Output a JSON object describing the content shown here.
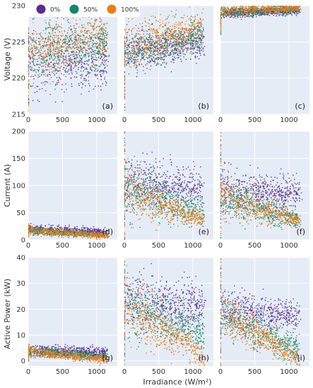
{
  "legend": [
    {
      "label": "0%",
      "color": "#5b2c91"
    },
    {
      "label": "50%",
      "color": "#10876a"
    },
    {
      "label": "100%",
      "color": "#ec7d14"
    }
  ],
  "colors": {
    "plot_background": "#e5ecf6",
    "grid": "#ffffff"
  },
  "chart_data": [
    {
      "type": "scatter",
      "panel": "(a)",
      "quantity": "voltage",
      "ylabel": "Voltage (V)",
      "ylim": [
        215,
        230
      ],
      "yticks": [
        215,
        220,
        225,
        230
      ],
      "xlim": [
        0,
        1300
      ],
      "xticks": [
        0,
        500,
        1000
      ],
      "series": [
        {
          "name": "0%",
          "x_range": [
            0,
            1150
          ],
          "y_start": [
            218,
            227
          ],
          "y_end": [
            219,
            226
          ],
          "at_x0": [
            216,
            227
          ]
        },
        {
          "name": "50%",
          "x_range": [
            0,
            1150
          ],
          "y_start": [
            219,
            227
          ],
          "y_end": [
            222,
            228
          ],
          "at_x0": [
            216,
            227
          ]
        },
        {
          "name": "100%",
          "x_range": [
            0,
            1150
          ],
          "y_start": [
            220,
            227
          ],
          "y_end": [
            223,
            229
          ],
          "at_x0": [
            215.5,
            227
          ]
        }
      ]
    },
    {
      "type": "scatter",
      "panel": "(b)",
      "quantity": "voltage",
      "ylim": [
        215,
        230
      ],
      "xlim": [
        0,
        1300
      ],
      "xticks": [
        0,
        500,
        1000
      ],
      "series": [
        {
          "name": "0%",
          "x_range": [
            0,
            1150
          ],
          "y_start": [
            221,
            226
          ],
          "y_end": [
            223,
            227
          ],
          "at_x0": [
            215.5,
            226
          ]
        },
        {
          "name": "50%",
          "x_range": [
            0,
            1150
          ],
          "y_start": [
            221,
            226
          ],
          "y_end": [
            224,
            228
          ],
          "at_x0": [
            215.5,
            226
          ]
        },
        {
          "name": "100%",
          "x_range": [
            0,
            1150
          ],
          "y_start": [
            221,
            227
          ],
          "y_end": [
            225,
            229
          ],
          "at_x0": [
            215.5,
            227
          ]
        }
      ]
    },
    {
      "type": "scatter",
      "panel": "(c)",
      "quantity": "voltage",
      "ylim": [
        215,
        230
      ],
      "xlim": [
        0,
        1300
      ],
      "xticks": [
        0,
        500,
        1000
      ],
      "series": [
        {
          "name": "0%",
          "x_range": [
            0,
            1150
          ],
          "y_start": [
            228.3,
            229.6
          ],
          "y_end": [
            228.8,
            229.8
          ],
          "at_x0": [
            226,
            229
          ]
        },
        {
          "name": "50%",
          "x_range": [
            0,
            1150
          ],
          "y_start": [
            228.3,
            229.8
          ],
          "y_end": [
            229,
            230
          ],
          "at_x0": [
            226,
            229
          ]
        },
        {
          "name": "100%",
          "x_range": [
            0,
            1150
          ],
          "y_start": [
            228.5,
            230
          ],
          "y_end": [
            229.2,
            230.2
          ],
          "at_x0": [
            226,
            229.5
          ]
        }
      ]
    },
    {
      "type": "scatter",
      "panel": "(d)",
      "quantity": "current",
      "ylabel": "Current (A)",
      "ylim": [
        0,
        200
      ],
      "yticks": [
        0,
        50,
        100,
        150,
        200
      ],
      "xlim": [
        0,
        1300
      ],
      "xticks": [
        0,
        500,
        1000
      ],
      "series": [
        {
          "name": "0%",
          "x_range": [
            0,
            1150
          ],
          "y_start": [
            12,
            28
          ],
          "y_end": [
            8,
            20
          ],
          "at_x0": [
            5,
            30
          ]
        },
        {
          "name": "50%",
          "x_range": [
            0,
            1150
          ],
          "y_start": [
            10,
            25
          ],
          "y_end": [
            5,
            12
          ],
          "at_x0": [
            5,
            30
          ]
        },
        {
          "name": "100%",
          "x_range": [
            0,
            1150
          ],
          "y_start": [
            10,
            25
          ],
          "y_end": [
            3,
            12
          ],
          "at_x0": [
            5,
            30
          ]
        }
      ]
    },
    {
      "type": "scatter",
      "panel": "(e)",
      "quantity": "current",
      "ylim": [
        0,
        200
      ],
      "xlim": [
        0,
        1300
      ],
      "xticks": [
        0,
        500,
        1000
      ],
      "series": [
        {
          "name": "0%",
          "x_range": [
            0,
            1150
          ],
          "y_start": [
            55,
            150
          ],
          "y_end": [
            70,
            125
          ],
          "at_x0": [
            0,
            200
          ]
        },
        {
          "name": "50%",
          "x_range": [
            0,
            1150
          ],
          "y_start": [
            50,
            140
          ],
          "y_end": [
            25,
            75
          ],
          "at_x0": [
            0,
            200
          ]
        },
        {
          "name": "100%",
          "x_range": [
            0,
            1150
          ],
          "y_start": [
            50,
            140
          ],
          "y_end": [
            25,
            45
          ],
          "at_x0": [
            0,
            200
          ]
        }
      ]
    },
    {
      "type": "scatter",
      "panel": "(f)",
      "quantity": "current",
      "ylim": [
        0,
        200
      ],
      "xlim": [
        0,
        1300
      ],
      "xticks": [
        0,
        500,
        1000
      ],
      "series": [
        {
          "name": "0%",
          "x_range": [
            0,
            1150
          ],
          "y_start": [
            50,
            130
          ],
          "y_end": [
            65,
            110
          ],
          "at_x0": [
            0,
            200
          ]
        },
        {
          "name": "50%",
          "x_range": [
            0,
            1150
          ],
          "y_start": [
            45,
            115
          ],
          "y_end": [
            20,
            50
          ],
          "at_x0": [
            0,
            200
          ]
        },
        {
          "name": "100%",
          "x_range": [
            0,
            1150
          ],
          "y_start": [
            45,
            115
          ],
          "y_end": [
            25,
            45
          ],
          "at_x0": [
            0,
            200
          ]
        }
      ]
    },
    {
      "type": "scatter",
      "panel": "(g)",
      "quantity": "active power",
      "ylabel": "Active Power (kW)",
      "ylim": [
        -2,
        40
      ],
      "yticks": [
        0,
        10,
        20,
        30,
        40
      ],
      "xlim": [
        0,
        1300
      ],
      "xticks": [
        0,
        500,
        1000
      ],
      "series": [
        {
          "name": "0%",
          "x_range": [
            0,
            1150
          ],
          "y_start": [
            2,
            6
          ],
          "y_end": [
            1.5,
            5
          ],
          "at_x0": [
            0,
            6
          ]
        },
        {
          "name": "50%",
          "x_range": [
            0,
            1150
          ],
          "y_start": [
            2,
            5.5
          ],
          "y_end": [
            0,
            3
          ],
          "at_x0": [
            0,
            6
          ]
        },
        {
          "name": "100%",
          "x_range": [
            0,
            1150
          ],
          "y_start": [
            2,
            5.5
          ],
          "y_end": [
            -1,
            2
          ],
          "at_x0": [
            0,
            6
          ]
        }
      ]
    },
    {
      "type": "scatter",
      "panel": "(h)",
      "quantity": "active power",
      "ylim": [
        -2,
        40
      ],
      "xlim": [
        0,
        1300
      ],
      "xticks": [
        0,
        500,
        1000
      ],
      "series": [
        {
          "name": "0%",
          "x_range": [
            0,
            1150
          ],
          "y_start": [
            12,
            35
          ],
          "y_end": [
            14,
            28
          ],
          "at_x0": [
            -2,
            40
          ]
        },
        {
          "name": "50%",
          "x_range": [
            0,
            1150
          ],
          "y_start": [
            11,
            32
          ],
          "y_end": [
            5,
            17
          ],
          "at_x0": [
            -2,
            40
          ]
        },
        {
          "name": "100%",
          "x_range": [
            0,
            1150
          ],
          "y_start": [
            11,
            32
          ],
          "y_end": [
            -2,
            7
          ],
          "at_x0": [
            -2,
            40
          ]
        }
      ]
    },
    {
      "type": "scatter",
      "panel": "(i)",
      "quantity": "active power",
      "ylim": [
        -2,
        40
      ],
      "xlim": [
        0,
        1300
      ],
      "xticks": [
        0,
        500,
        1000
      ],
      "series": [
        {
          "name": "0%",
          "x_range": [
            0,
            1150
          ],
          "y_start": [
            12,
            28
          ],
          "y_end": [
            13,
            22
          ],
          "at_x0": [
            -2,
            40
          ]
        },
        {
          "name": "50%",
          "x_range": [
            0,
            1150
          ],
          "y_start": [
            11,
            26
          ],
          "y_end": [
            -1,
            9
          ],
          "at_x0": [
            -2,
            40
          ]
        },
        {
          "name": "100%",
          "x_range": [
            0,
            1150
          ],
          "y_start": [
            11,
            26
          ],
          "y_end": [
            -2,
            4
          ],
          "at_x0": [
            -2,
            40
          ]
        }
      ]
    }
  ],
  "xlabel": "Irradiance (W/m²)"
}
